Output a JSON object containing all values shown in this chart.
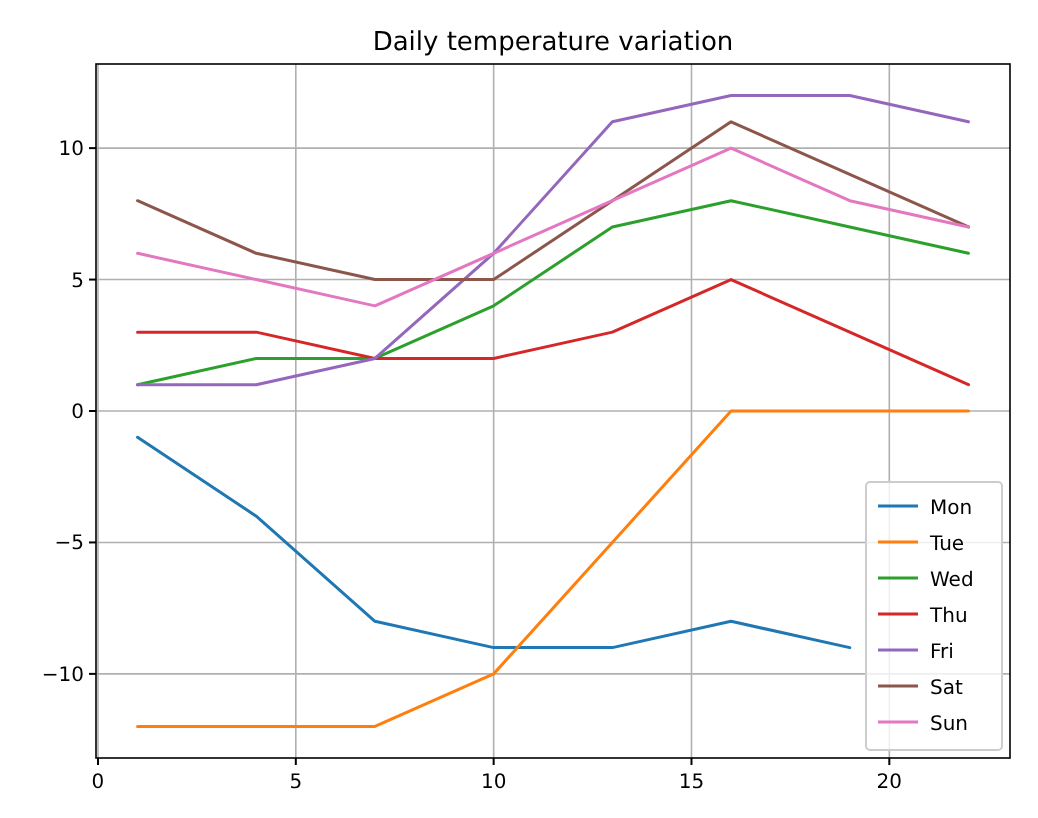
{
  "chart_data": {
    "type": "line",
    "title": "Daily temperature variation",
    "x": [
      1,
      4,
      7,
      10,
      13,
      16,
      19,
      22
    ],
    "series": [
      {
        "name": "Mon",
        "color": "#1f77b4",
        "values": [
          -1,
          -4,
          -8,
          -9,
          -9,
          -8,
          -9,
          null
        ]
      },
      {
        "name": "Tue",
        "color": "#ff7f0e",
        "values": [
          -12,
          -12,
          -12,
          -10,
          -5,
          0,
          0,
          0
        ]
      },
      {
        "name": "Wed",
        "color": "#2ca02c",
        "values": [
          1,
          2,
          2,
          4,
          7,
          8,
          7,
          6
        ]
      },
      {
        "name": "Thu",
        "color": "#d62728",
        "values": [
          3,
          3,
          2,
          2,
          3,
          5,
          3,
          1
        ]
      },
      {
        "name": "Fri",
        "color": "#9467bd",
        "values": [
          1,
          1,
          2,
          6,
          11,
          12,
          12,
          11
        ]
      },
      {
        "name": "Sat",
        "color": "#8c564b",
        "values": [
          8,
          6,
          5,
          5,
          8,
          11,
          9,
          7
        ]
      },
      {
        "name": "Sun",
        "color": "#e377c2",
        "values": [
          6,
          5,
          4,
          6,
          8,
          10,
          8,
          7
        ]
      }
    ],
    "xlim": [
      -0.05,
      23.05
    ],
    "xticks": [
      0,
      5,
      10,
      15,
      20
    ],
    "ylim": [
      -13.2,
      13.2
    ],
    "yticks": [
      -10,
      -5,
      0,
      5,
      10
    ],
    "grid": true,
    "legend": "bottom right",
    "line_style": "solid",
    "marker": "none"
  }
}
